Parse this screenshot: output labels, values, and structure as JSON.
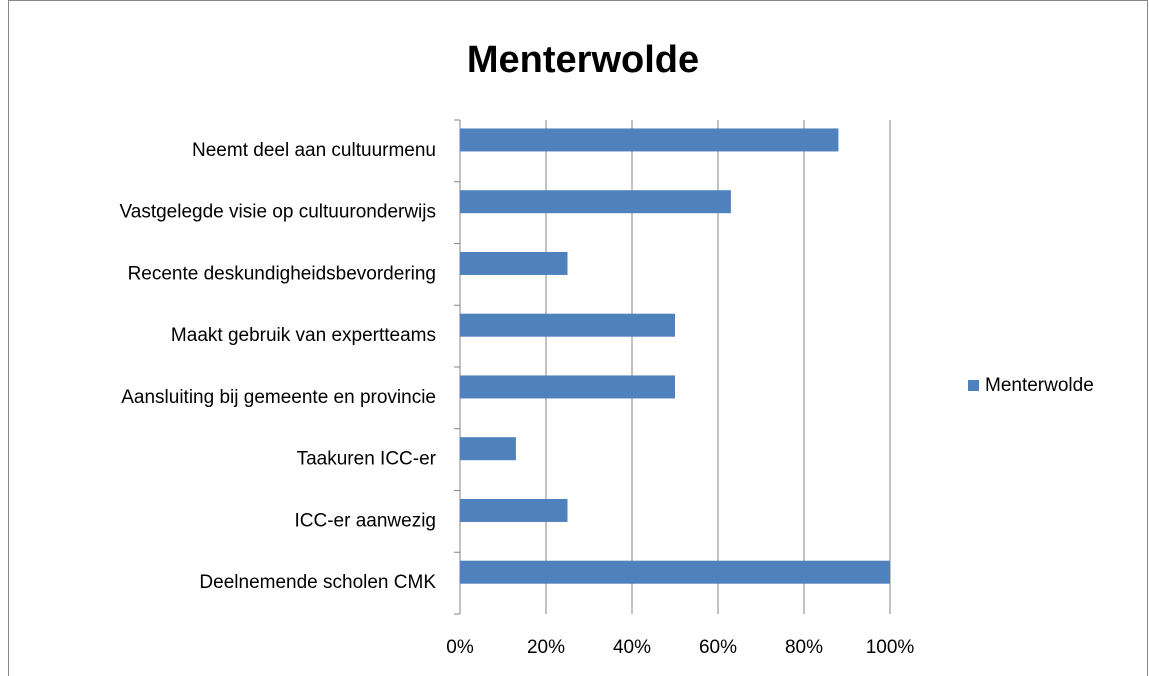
{
  "chart_data": {
    "type": "bar",
    "orientation": "horizontal",
    "title": "Menterwolde",
    "categories": [
      "Neemt deel aan cultuurmenu",
      "Vastgelegde visie op cultuuronderwijs",
      "Recente deskundigheidsbevordering",
      "Maakt gebruik van expertteams",
      "Aansluiting bij gemeente en provincie",
      "Taakuren ICC-er",
      "ICC-er aanwezig",
      "Deelnemende scholen CMK"
    ],
    "series": [
      {
        "name": "Menterwolde",
        "color": "#4f81bd",
        "values": [
          88,
          63,
          25,
          50,
          50,
          13,
          25,
          100
        ]
      }
    ],
    "xlim": [
      0,
      100
    ],
    "xticks": [
      {
        "value": 0,
        "label": "0%"
      },
      {
        "value": 20,
        "label": "20%"
      },
      {
        "value": 40,
        "label": "40%"
      },
      {
        "value": 60,
        "label": "60%"
      },
      {
        "value": 80,
        "label": "80%"
      },
      {
        "value": 100,
        "label": "100%"
      }
    ],
    "grid": true,
    "legend": "right"
  }
}
